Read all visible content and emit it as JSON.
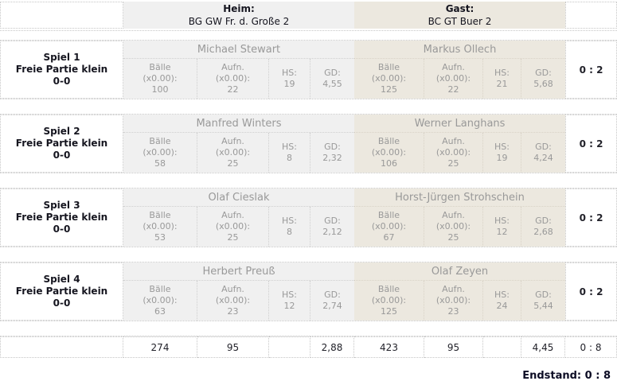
{
  "header": {
    "home_label": "Heim:",
    "home_team": "BG GW Fr. d. Große 2",
    "guest_label": "Gast:",
    "guest_team": "BC GT Buer 2"
  },
  "labels": {
    "baelle": "Bälle",
    "multiplier": "(x0.00):",
    "aufn": "Aufn.",
    "hs": "HS:",
    "gd": "GD:"
  },
  "games": [
    {
      "name": "Spiel 1",
      "discipline": "Freie Partie klein",
      "prescore": "0-0",
      "score": "0 : 2",
      "home": {
        "player": "Michael Stewart",
        "baelle": "100",
        "aufn": "22",
        "hs": "19",
        "gd": "4,55"
      },
      "guest": {
        "player": "Markus Ollech",
        "baelle": "125",
        "aufn": "22",
        "hs": "21",
        "gd": "5,68"
      }
    },
    {
      "name": "Spiel 2",
      "discipline": "Freie Partie klein",
      "prescore": "0-0",
      "score": "0 : 2",
      "home": {
        "player": "Manfred Winters",
        "baelle": "58",
        "aufn": "25",
        "hs": "8",
        "gd": "2,32"
      },
      "guest": {
        "player": "Werner Langhans",
        "baelle": "106",
        "aufn": "25",
        "hs": "19",
        "gd": "4,24"
      }
    },
    {
      "name": "Spiel 3",
      "discipline": "Freie Partie klein",
      "prescore": "0-0",
      "score": "0 : 2",
      "home": {
        "player": "Olaf Cieslak",
        "baelle": "53",
        "aufn": "25",
        "hs": "8",
        "gd": "2,12"
      },
      "guest": {
        "player": "Horst-Jürgen Strohschein",
        "baelle": "67",
        "aufn": "25",
        "hs": "12",
        "gd": "2,68"
      }
    },
    {
      "name": "Spiel 4",
      "discipline": "Freie Partie klein",
      "prescore": "0-0",
      "score": "0 : 2",
      "home": {
        "player": "Herbert Preuß",
        "baelle": "63",
        "aufn": "23",
        "hs": "12",
        "gd": "2,74"
      },
      "guest": {
        "player": "Olaf Zeyen",
        "baelle": "125",
        "aufn": "23",
        "hs": "24",
        "gd": "5,44"
      }
    }
  ],
  "totals": {
    "home": {
      "baelle": "274",
      "aufn": "95",
      "hs": "",
      "gd": "2,88"
    },
    "guest": {
      "baelle": "423",
      "aufn": "95",
      "hs": "",
      "gd": "4,45"
    },
    "score": "0 : 8"
  },
  "footer": {
    "endstand": "Endstand: 0 : 8"
  }
}
